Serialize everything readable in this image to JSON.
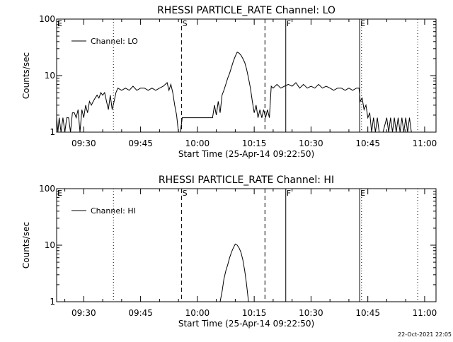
{
  "footer": "22-Oct-2021 22:05",
  "chart_data": [
    {
      "type": "line",
      "title": "RHESSI PARTICLE_RATE Channel: LO",
      "xlabel": "Start Time (25-Apr-14 09:22:50)",
      "ylabel": "Counts/sec",
      "y_scale": "log",
      "ylim": [
        1,
        100
      ],
      "xlim": [
        "09:22:50",
        "11:03:00"
      ],
      "x_ticks": [
        "09:30",
        "09:45",
        "10:00",
        "10:15",
        "10:30",
        "10:45",
        "11:00"
      ],
      "y_ticks": [
        "1",
        "10",
        "100"
      ],
      "legend": {
        "label": "Channel: LO",
        "placement": "top-left"
      },
      "markers": [
        {
          "label": "E",
          "time": "09:22:50",
          "style": "none"
        },
        {
          "label": "",
          "time": "09:37:50",
          "style": "dotted"
        },
        {
          "label": "S",
          "time": "09:55:50",
          "style": "dashed"
        },
        {
          "label": "",
          "time": "10:17:50",
          "style": "dashed"
        },
        {
          "label": "F",
          "time": "10:23:20",
          "style": "solid"
        },
        {
          "label": "E",
          "time": "10:42:50",
          "style": "solid"
        },
        {
          "label": "",
          "time": "10:43:20",
          "style": "dotted"
        },
        {
          "label": "",
          "time": "10:58:10",
          "style": "dotted"
        }
      ],
      "series": [
        {
          "points": [
            [
              "09:22:50",
              1.8
            ],
            [
              "09:23:10",
              1
            ],
            [
              "09:23:30",
              1.8
            ],
            [
              "09:24:00",
              1
            ],
            [
              "09:24:30",
              1.8
            ],
            [
              "09:25:00",
              1
            ],
            [
              "09:25:30",
              1.8
            ],
            [
              "09:26:00",
              1.8
            ],
            [
              "09:26:30",
              1
            ],
            [
              "09:27:00",
              2.2
            ],
            [
              "09:27:30",
              2.2
            ],
            [
              "09:28:00",
              1.8
            ],
            [
              "09:28:30",
              2.5
            ],
            [
              "09:29:00",
              1
            ],
            [
              "09:29:30",
              2.5
            ],
            [
              "09:30:00",
              1.8
            ],
            [
              "09:30:30",
              3
            ],
            [
              "09:31:00",
              2.2
            ],
            [
              "09:31:30",
              3.5
            ],
            [
              "09:32:00",
              3
            ],
            [
              "09:32:30",
              3.5
            ],
            [
              "09:33:00",
              4
            ],
            [
              "09:33:30",
              4.5
            ],
            [
              "09:34:00",
              4
            ],
            [
              "09:34:30",
              5
            ],
            [
              "09:35:00",
              4.5
            ],
            [
              "09:35:30",
              5
            ],
            [
              "09:36:00",
              3.5
            ],
            [
              "09:36:30",
              2.5
            ],
            [
              "09:37:00",
              4.5
            ],
            [
              "09:37:30",
              2.5
            ],
            [
              "09:38:00",
              3.5
            ],
            [
              "09:38:30",
              5
            ],
            [
              "09:39:00",
              6
            ],
            [
              "09:40:00",
              5.5
            ],
            [
              "09:41:00",
              6
            ],
            [
              "09:42:00",
              5.5
            ],
            [
              "09:43:00",
              6.5
            ],
            [
              "09:44:00",
              5.5
            ],
            [
              "09:45:00",
              6
            ],
            [
              "09:46:00",
              6
            ],
            [
              "09:47:00",
              5.5
            ],
            [
              "09:48:00",
              6
            ],
            [
              "09:49:00",
              5.5
            ],
            [
              "09:50:00",
              6
            ],
            [
              "09:51:00",
              6.5
            ],
            [
              "09:52:00",
              7.5
            ],
            [
              "09:52:30",
              5.5
            ],
            [
              "09:53:00",
              7
            ],
            [
              "09:53:30",
              5
            ],
            [
              "09:54:00",
              3
            ],
            [
              "09:54:30",
              2
            ],
            [
              "09:55:00",
              1
            ],
            [
              "09:55:30",
              1
            ],
            [
              "09:56:00",
              1.8
            ],
            [
              "10:04:00",
              1.8
            ],
            [
              "10:04:30",
              3
            ],
            [
              "10:05:00",
              2
            ],
            [
              "10:05:30",
              3.5
            ],
            [
              "10:06:00",
              2.2
            ],
            [
              "10:06:30",
              4.5
            ],
            [
              "10:07:00",
              5.5
            ],
            [
              "10:07:30",
              7
            ],
            [
              "10:08:00",
              9
            ],
            [
              "10:08:30",
              11
            ],
            [
              "10:09:00",
              14
            ],
            [
              "10:09:30",
              18
            ],
            [
              "10:10:00",
              22
            ],
            [
              "10:10:30",
              26
            ],
            [
              "10:11:00",
              25
            ],
            [
              "10:11:30",
              23
            ],
            [
              "10:12:00",
              20
            ],
            [
              "10:12:30",
              17
            ],
            [
              "10:13:00",
              13
            ],
            [
              "10:13:30",
              9
            ],
            [
              "10:14:00",
              6
            ],
            [
              "10:14:30",
              3.5
            ],
            [
              "10:15:00",
              2.2
            ],
            [
              "10:15:30",
              3
            ],
            [
              "10:16:00",
              1.8
            ],
            [
              "10:16:30",
              2.5
            ],
            [
              "10:17:00",
              1.8
            ],
            [
              "10:17:30",
              2.5
            ],
            [
              "10:18:00",
              1.8
            ],
            [
              "10:18:30",
              2.5
            ],
            [
              "10:19:00",
              1.8
            ],
            [
              "10:19:30",
              6.5
            ],
            [
              "10:20:00",
              6
            ],
            [
              "10:21:00",
              7
            ],
            [
              "10:22:00",
              6
            ],
            [
              "10:23:00",
              6.5
            ],
            [
              "10:24:00",
              7
            ],
            [
              "10:25:00",
              6.5
            ],
            [
              "10:26:00",
              7.5
            ],
            [
              "10:27:00",
              6
            ],
            [
              "10:28:00",
              7
            ],
            [
              "10:29:00",
              6
            ],
            [
              "10:30:00",
              6.5
            ],
            [
              "10:31:00",
              6
            ],
            [
              "10:32:00",
              7
            ],
            [
              "10:33:00",
              6
            ],
            [
              "10:34:00",
              6.5
            ],
            [
              "10:35:00",
              6
            ],
            [
              "10:36:00",
              5.5
            ],
            [
              "10:37:00",
              6
            ],
            [
              "10:38:00",
              6
            ],
            [
              "10:39:00",
              5.5
            ],
            [
              "10:40:00",
              6
            ],
            [
              "10:41:00",
              5.5
            ],
            [
              "10:42:00",
              6
            ],
            [
              "10:42:40",
              6
            ],
            [
              "10:43:00",
              3.5
            ],
            [
              "10:43:30",
              4
            ],
            [
              "10:44:00",
              2.5
            ],
            [
              "10:44:30",
              3
            ],
            [
              "10:45:00",
              1.8
            ],
            [
              "10:45:30",
              2.2
            ],
            [
              "10:46:00",
              1
            ],
            [
              "10:46:30",
              1.8
            ],
            [
              "10:47:00",
              1
            ],
            [
              "10:47:30",
              1.8
            ],
            [
              "10:48:00",
              1
            ],
            [
              "10:49:00",
              1
            ],
            [
              "10:50:00",
              1.8
            ],
            [
              "10:50:30",
              1
            ],
            [
              "10:51:00",
              1.8
            ],
            [
              "10:51:30",
              1
            ],
            [
              "10:52:00",
              1.8
            ],
            [
              "10:52:30",
              1
            ],
            [
              "10:53:00",
              1.8
            ],
            [
              "10:53:30",
              1
            ],
            [
              "10:54:00",
              1.8
            ],
            [
              "10:54:30",
              1
            ],
            [
              "10:55:00",
              1.8
            ],
            [
              "10:55:30",
              1
            ],
            [
              "10:56:00",
              1.8
            ],
            [
              "10:56:30",
              1
            ]
          ]
        }
      ]
    },
    {
      "type": "line",
      "title": "RHESSI PARTICLE_RATE Channel: HI",
      "xlabel": "Start Time (25-Apr-14 09:22:50)",
      "ylabel": "Counts/sec",
      "y_scale": "log",
      "ylim": [
        1,
        100
      ],
      "xlim": [
        "09:22:50",
        "11:03:00"
      ],
      "x_ticks": [
        "09:30",
        "09:45",
        "10:00",
        "10:15",
        "10:30",
        "10:45",
        "11:00"
      ],
      "y_ticks": [
        "1",
        "10",
        "100"
      ],
      "legend": {
        "label": "Channel: HI",
        "placement": "top-left"
      },
      "markers": [
        {
          "label": "E",
          "time": "09:22:50",
          "style": "none"
        },
        {
          "label": "",
          "time": "09:37:50",
          "style": "dotted"
        },
        {
          "label": "S",
          "time": "09:55:50",
          "style": "dashed"
        },
        {
          "label": "",
          "time": "10:17:50",
          "style": "dashed"
        },
        {
          "label": "F",
          "time": "10:23:20",
          "style": "solid"
        },
        {
          "label": "E",
          "time": "10:42:50",
          "style": "solid"
        },
        {
          "label": "",
          "time": "10:43:20",
          "style": "dotted"
        },
        {
          "label": "",
          "time": "10:58:10",
          "style": "dotted"
        }
      ],
      "series": [
        {
          "points": [
            [
              "10:06:00",
              1
            ],
            [
              "10:06:30",
              1.5
            ],
            [
              "10:07:00",
              2.5
            ],
            [
              "10:07:30",
              3.5
            ],
            [
              "10:08:00",
              4.5
            ],
            [
              "10:08:30",
              6
            ],
            [
              "10:09:00",
              7.5
            ],
            [
              "10:09:30",
              9
            ],
            [
              "10:10:00",
              10.5
            ],
            [
              "10:10:30",
              10
            ],
            [
              "10:11:00",
              9
            ],
            [
              "10:11:30",
              7.5
            ],
            [
              "10:12:00",
              5.5
            ],
            [
              "10:12:30",
              3.5
            ],
            [
              "10:13:00",
              2
            ],
            [
              "10:13:30",
              1
            ]
          ]
        }
      ]
    }
  ]
}
